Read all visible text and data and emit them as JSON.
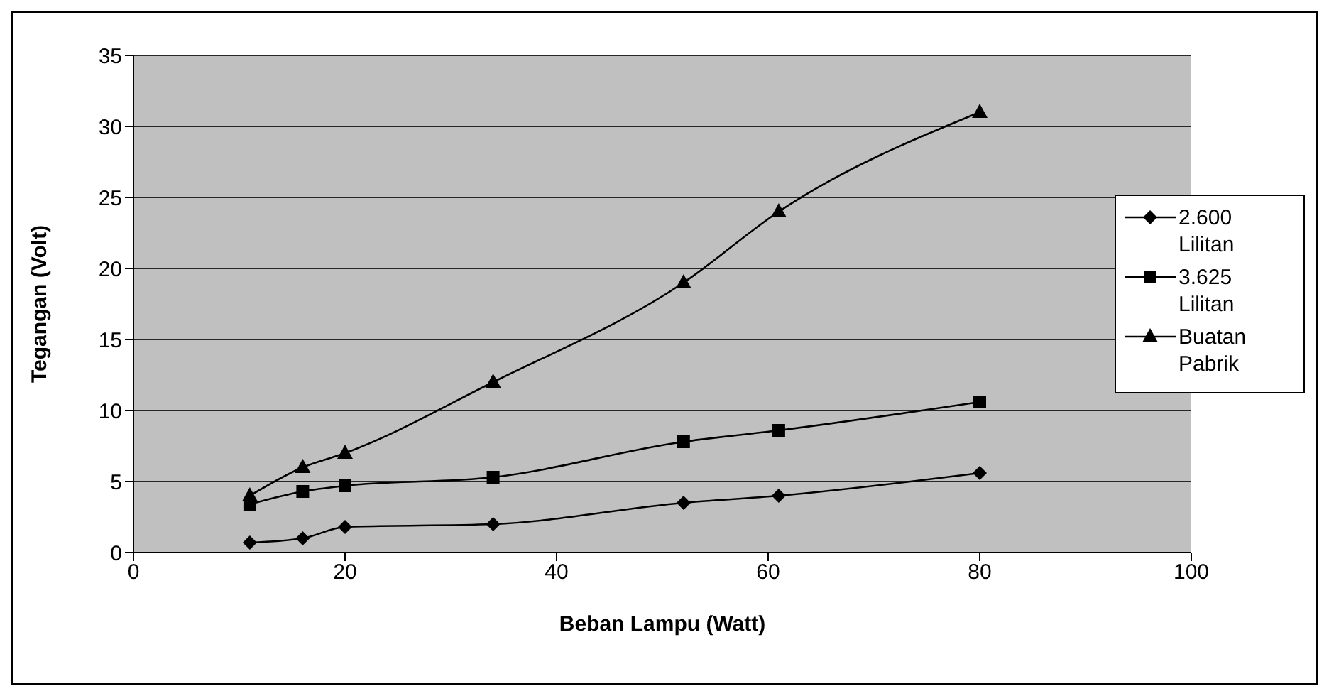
{
  "chart_data": {
    "type": "line",
    "xlabel": "Beban Lampu (Watt)",
    "ylabel": "Tegangan (Volt)",
    "x": [
      11,
      16,
      20,
      34,
      52,
      61,
      80
    ],
    "xlim": [
      0,
      100
    ],
    "xticks": [
      0,
      20,
      40,
      60,
      80,
      100
    ],
    "ylim": [
      0,
      35
    ],
    "yticks": [
      0,
      5,
      10,
      15,
      20,
      25,
      30,
      35
    ],
    "grid": "y",
    "legend": "right",
    "series": [
      {
        "name": "2.600 Lilitan",
        "color": "#000000",
        "marker": "diamond",
        "values": [
          0.7,
          1.0,
          1.8,
          2.0,
          3.5,
          4.0,
          5.6
        ]
      },
      {
        "name": "3.625 Lilitan",
        "color": "#000000",
        "marker": "square",
        "values": [
          3.4,
          4.3,
          4.7,
          5.3,
          7.8,
          8.6,
          10.6
        ]
      },
      {
        "name": "Buatan Pabrik",
        "color": "#000000",
        "marker": "triangle",
        "values": [
          4.0,
          6.0,
          7.0,
          12.0,
          19.0,
          24.0,
          31.0
        ]
      }
    ]
  }
}
